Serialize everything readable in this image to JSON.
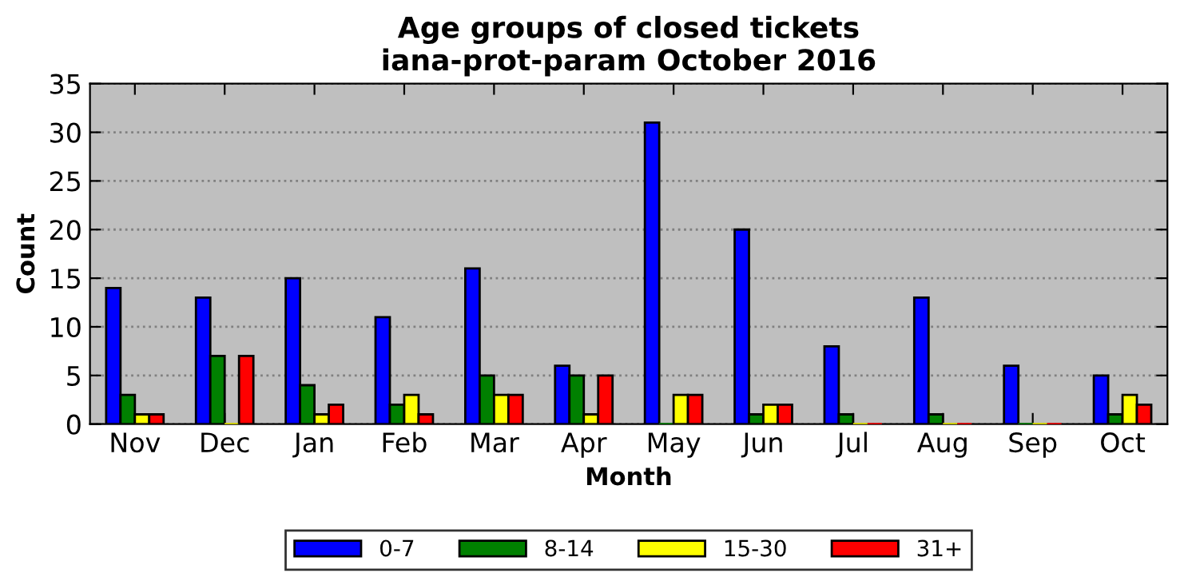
{
  "chart_data": {
    "type": "bar",
    "title": "Age groups of closed tickets\niana-prot-param October 2016",
    "xlabel": "Month",
    "ylabel": "Count",
    "categories": [
      "Nov",
      "Dec",
      "Jan",
      "Feb",
      "Mar",
      "Apr",
      "May",
      "Jun",
      "Jul",
      "Aug",
      "Sep",
      "Oct"
    ],
    "series": [
      {
        "name": "0-7",
        "color": "#0000ff",
        "values": [
          14,
          13,
          15,
          11,
          16,
          6,
          31,
          20,
          8,
          13,
          6,
          5
        ]
      },
      {
        "name": "8-14",
        "color": "#008000",
        "values": [
          3,
          7,
          4,
          2,
          5,
          5,
          0,
          1,
          1,
          1,
          0,
          1
        ]
      },
      {
        "name": "15-30",
        "color": "#ffff00",
        "values": [
          1,
          0,
          1,
          3,
          3,
          1,
          3,
          2,
          0,
          0,
          0,
          3
        ]
      },
      {
        "name": "31+",
        "color": "#ff0000",
        "values": [
          1,
          7,
          2,
          1,
          3,
          5,
          3,
          2,
          0,
          0,
          0,
          2
        ]
      }
    ],
    "ylim": [
      0,
      35
    ],
    "yticks": [
      0,
      5,
      10,
      15,
      20,
      25,
      30,
      35
    ],
    "grid": "y",
    "legend": "bottom"
  }
}
